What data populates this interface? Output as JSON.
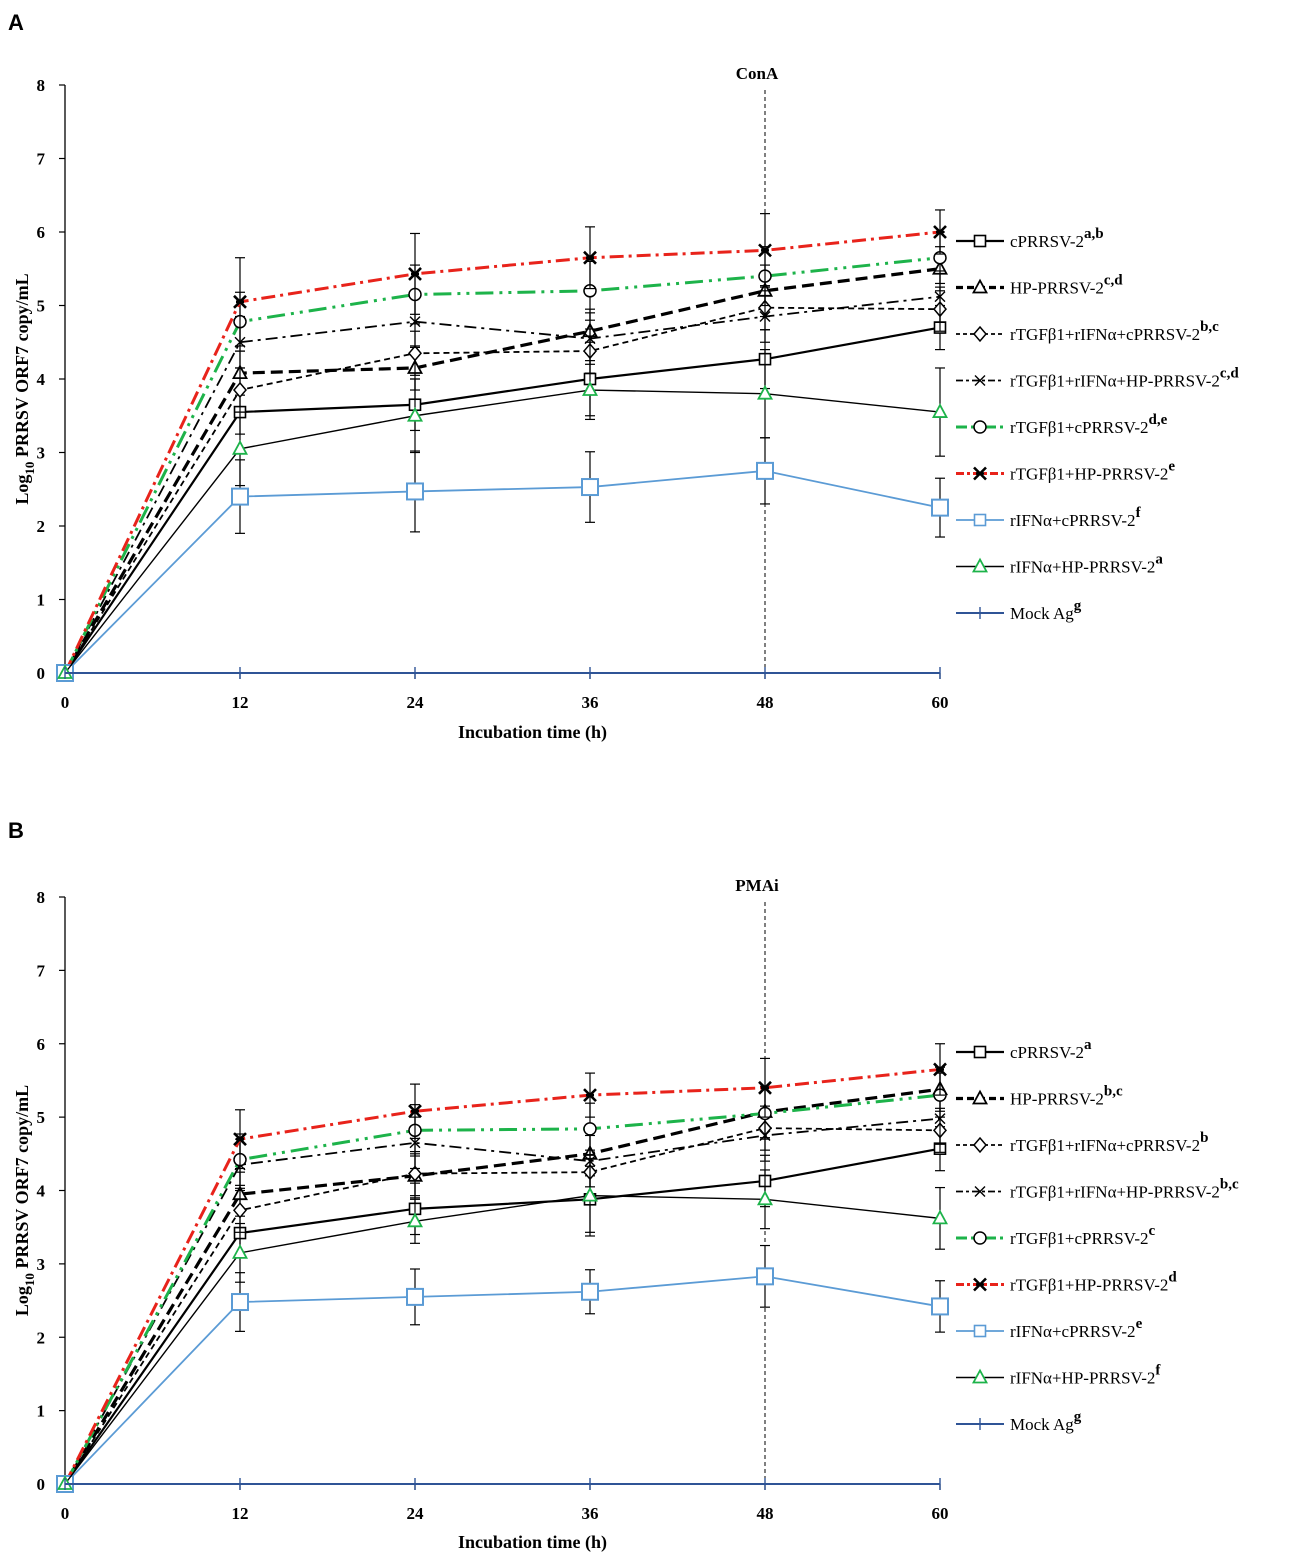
{
  "chart_data": [
    {
      "panel": "A",
      "type": "line",
      "annotation": "ConA",
      "annotation_x": 48,
      "xlabel": "Incubation time (h)",
      "ylabel_main": "Log",
      "ylabel_sub": "10",
      "ylabel_rest": " PRRSV ORF7 copy/mL",
      "x": [
        0,
        12,
        24,
        36,
        48,
        60
      ],
      "x_ticks": [
        "0",
        "12",
        "24",
        "36",
        "48",
        "60"
      ],
      "y_ticks": [
        "0",
        "1",
        "2",
        "3",
        "4",
        "5",
        "6",
        "7",
        "8"
      ],
      "ylim": [
        0,
        8
      ],
      "xlim": [
        0,
        60
      ],
      "series": [
        {
          "name": "cPRRSV-2",
          "sup": "a,b",
          "color": "#000000",
          "dash": "",
          "width": 2.2,
          "marker": "square",
          "marker_stroke": "#000000",
          "legend_sample": "solid-heavy",
          "values": [
            0,
            3.55,
            3.65,
            4.0,
            4.27,
            4.7
          ],
          "err": [
            0,
            0.3,
            0.35,
            0.5,
            0.4,
            0.3
          ]
        },
        {
          "name": "HP-PRRSV-2",
          "sup": "c,d",
          "color": "#000000",
          "dash": "12,6",
          "width": 3.2,
          "marker": "triangle",
          "marker_stroke": "#000000",
          "values": [
            0,
            4.08,
            4.15,
            4.65,
            5.2,
            5.5
          ],
          "err": [
            0,
            0.3,
            0.3,
            0.3,
            0.35,
            0.3
          ]
        },
        {
          "name": "rTGFβ1+rIFNα+cPRRSV-2",
          "sup": "b,c",
          "color": "#000000",
          "dash": "6,4",
          "width": 1.8,
          "marker": "diamond",
          "marker_stroke": "#000000",
          "values": [
            0,
            3.85,
            4.35,
            4.38,
            4.97,
            4.95
          ],
          "err": [
            0,
            0.3,
            0.3,
            0.3,
            0.3,
            0.3
          ]
        },
        {
          "name": "rTGFβ1+rIFNα+HP-PRRSV-2",
          "sup": "c,d",
          "color": "#000000",
          "dash": "12,5,3,5",
          "width": 1.8,
          "marker": "x",
          "marker_stroke": "#000000",
          "values": [
            0,
            4.5,
            4.78,
            4.55,
            4.85,
            5.12
          ],
          "err": [
            0,
            0.35,
            0.35,
            0.35,
            0.35,
            0.35
          ]
        },
        {
          "name": "rTGFβ1+cPRRSV-2",
          "sup": "d,e",
          "color": "#1db34a",
          "dash": "18,6,3,6,3,6",
          "width": 3.0,
          "marker": "circle",
          "marker_stroke": "#000000",
          "values": [
            0,
            4.78,
            5.15,
            5.2,
            5.4,
            5.65
          ],
          "err": [
            0,
            0.4,
            0.4,
            0.4,
            0.4,
            0.35
          ]
        },
        {
          "name": "rTGFβ1+HP-PRRSV-2",
          "sup": "e",
          "color": "#e8231b",
          "dash": "14,5,3,5",
          "width": 3.0,
          "marker": "star",
          "marker_stroke": "#000000",
          "values": [
            0,
            5.05,
            5.43,
            5.65,
            5.75,
            6.0
          ],
          "err": [
            0,
            0.6,
            0.55,
            0.42,
            0.5,
            0.3
          ]
        },
        {
          "name": "rIFNα+cPRRSV-2",
          "sup": "f",
          "color": "#5b9bd5",
          "dash": "",
          "width": 1.8,
          "marker": "bigsquare",
          "marker_stroke": "#5b9bd5",
          "values": [
            0,
            2.4,
            2.47,
            2.53,
            2.75,
            2.25
          ],
          "err": [
            0,
            0.5,
            0.55,
            0.48,
            0.45,
            0.4
          ]
        },
        {
          "name": "rIFNα+HP-PRRSV-2",
          "sup": "a",
          "color": "#000000",
          "dash": "",
          "width": 1.4,
          "marker": "triangle",
          "marker_stroke": "#1db34a",
          "values": [
            0,
            3.05,
            3.5,
            3.85,
            3.8,
            3.55
          ],
          "err": [
            0,
            0.5,
            0.5,
            0.4,
            0.6,
            0.6
          ]
        },
        {
          "name": "Mock Ag",
          "sup": "g",
          "color": "#2f5496",
          "dash": "",
          "width": 2.0,
          "marker": "plus",
          "marker_stroke": "#2f5496",
          "values": [
            0,
            0,
            0,
            0,
            0,
            0
          ],
          "err": [
            0,
            0,
            0,
            0,
            0,
            0
          ]
        }
      ]
    },
    {
      "panel": "B",
      "type": "line",
      "annotation": "PMAi",
      "annotation_x": 48,
      "xlabel": "Incubation time (h)",
      "ylabel_main": "Log",
      "ylabel_sub": "10",
      "ylabel_rest": " PRRSV ORF7 copy/mL",
      "x": [
        0,
        12,
        24,
        36,
        48,
        60
      ],
      "x_ticks": [
        "0",
        "12",
        "24",
        "36",
        "48",
        "60"
      ],
      "y_ticks": [
        "0",
        "1",
        "2",
        "3",
        "4",
        "5",
        "6",
        "7",
        "8"
      ],
      "ylim": [
        0,
        8
      ],
      "xlim": [
        0,
        60
      ],
      "series": [
        {
          "name": "cPRRSV-2",
          "sup": "a",
          "color": "#000000",
          "dash": "",
          "width": 2.2,
          "marker": "square",
          "marker_stroke": "#000000",
          "values": [
            0,
            3.42,
            3.75,
            3.88,
            4.13,
            4.57
          ],
          "err": [
            0,
            0.3,
            0.35,
            0.45,
            0.35,
            0.3
          ]
        },
        {
          "name": "HP-PRRSV-2",
          "sup": "b,c",
          "color": "#000000",
          "dash": "12,6",
          "width": 3.2,
          "marker": "triangle",
          "marker_stroke": "#000000",
          "values": [
            0,
            3.95,
            4.2,
            4.5,
            5.07,
            5.38
          ],
          "err": [
            0,
            0.3,
            0.3,
            0.3,
            0.35,
            0.3
          ]
        },
        {
          "name": "rTGFβ1+rIFNα+cPRRSV-2",
          "sup": "b",
          "color": "#000000",
          "dash": "6,4",
          "width": 1.8,
          "marker": "diamond",
          "marker_stroke": "#000000",
          "values": [
            0,
            3.73,
            4.23,
            4.25,
            4.85,
            4.82
          ],
          "err": [
            0,
            0.3,
            0.3,
            0.3,
            0.3,
            0.3
          ]
        },
        {
          "name": "rTGFβ1+rIFNα+HP-PRRSV-2",
          "sup": "b,c",
          "color": "#000000",
          "dash": "12,5,3,5",
          "width": 1.8,
          "marker": "x",
          "marker_stroke": "#000000",
          "values": [
            0,
            4.35,
            4.65,
            4.4,
            4.75,
            4.98
          ],
          "err": [
            0,
            0.35,
            0.35,
            0.35,
            0.35,
            0.35
          ]
        },
        {
          "name": "rTGFβ1+cPRRSV-2",
          "sup": "c",
          "color": "#1db34a",
          "dash": "18,6,3,6,3,6",
          "width": 3.0,
          "marker": "circle",
          "marker_stroke": "#000000",
          "values": [
            0,
            4.42,
            4.82,
            4.84,
            5.05,
            5.3
          ],
          "err": [
            0,
            0.35,
            0.35,
            0.35,
            0.35,
            0.3
          ]
        },
        {
          "name": "rTGFβ1+HP-PRRSV-2",
          "sup": "d",
          "color": "#e8231b",
          "dash": "14,5,3,5",
          "width": 3.0,
          "marker": "star",
          "marker_stroke": "#000000",
          "values": [
            0,
            4.7,
            5.08,
            5.3,
            5.4,
            5.65
          ],
          "err": [
            0,
            0.4,
            0.37,
            0.3,
            0.4,
            0.35
          ]
        },
        {
          "name": "rIFNα+cPRRSV-2",
          "sup": "e",
          "color": "#5b9bd5",
          "dash": "",
          "width": 1.8,
          "marker": "bigsquare",
          "marker_stroke": "#5b9bd5",
          "values": [
            0,
            2.48,
            2.55,
            2.62,
            2.83,
            2.42
          ],
          "err": [
            0,
            0.4,
            0.38,
            0.3,
            0.42,
            0.35
          ]
        },
        {
          "name": "rIFNα+HP-PRRSV-2",
          "sup": "f",
          "color": "#000000",
          "dash": "",
          "width": 1.4,
          "marker": "triangle",
          "marker_stroke": "#1db34a",
          "values": [
            0,
            3.15,
            3.58,
            3.93,
            3.88,
            3.62
          ],
          "err": [
            0,
            0.4,
            0.3,
            0.55,
            0.4,
            0.42
          ]
        },
        {
          "name": "Mock Ag",
          "sup": "g",
          "color": "#2f5496",
          "dash": "",
          "width": 2.0,
          "marker": "plus",
          "marker_stroke": "#2f5496",
          "values": [
            0,
            0,
            0,
            0,
            0,
            0
          ],
          "err": [
            0,
            0,
            0,
            0,
            0,
            0
          ]
        }
      ]
    }
  ]
}
